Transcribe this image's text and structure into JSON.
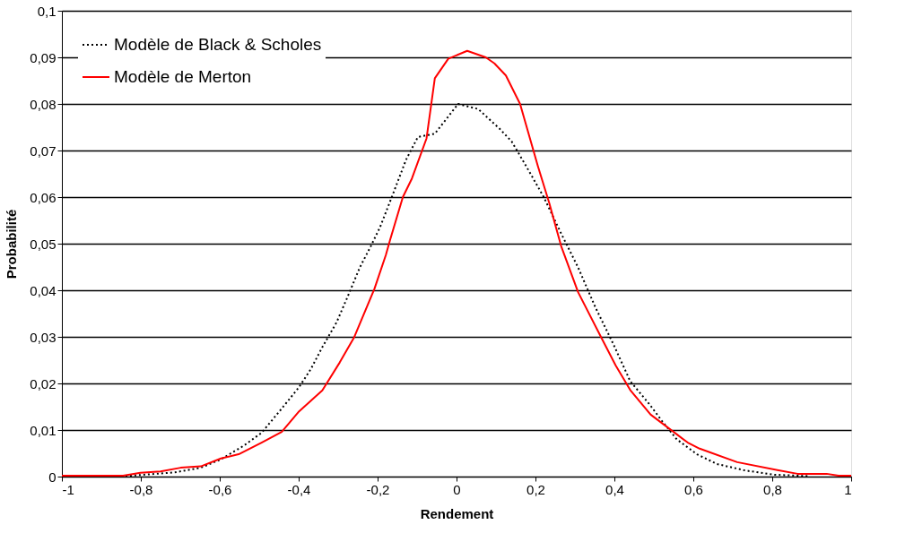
{
  "chart_data": {
    "type": "line",
    "xlabel": "Rendement",
    "ylabel": "Probabilité",
    "xlim": [
      -1,
      1
    ],
    "xticks": [
      {
        "value": -1,
        "label": "-1"
      },
      {
        "value": -0.8,
        "label": "-0,8"
      },
      {
        "value": -0.6,
        "label": "-0,6"
      },
      {
        "value": -0.4,
        "label": "-0,4"
      },
      {
        "value": -0.2,
        "label": "-0,2"
      },
      {
        "value": 0,
        "label": "0"
      },
      {
        "value": 0.2,
        "label": "0,2"
      },
      {
        "value": 0.4,
        "label": "0,4"
      },
      {
        "value": 0.6,
        "label": "0,6"
      },
      {
        "value": 0.8,
        "label": "0,8"
      },
      {
        "value": 1,
        "label": "1"
      }
    ],
    "ylim": [
      0,
      0.1
    ],
    "yticks": [
      0,
      {
        "value": 0.01,
        "label": "0,01"
      },
      {
        "value": 0.02,
        "label": "0,02"
      },
      {
        "value": 0.03,
        "label": "0,03"
      },
      {
        "value": 0.04,
        "label": "0,04"
      },
      {
        "value": 0.05,
        "label": "0,05"
      },
      {
        "value": 0.06,
        "label": "0,06"
      },
      {
        "value": 0.07,
        "label": "0,07"
      },
      {
        "value": 0.08,
        "label": "0,08"
      },
      {
        "value": 0.09,
        "label": "0,09"
      },
      {
        "value": 0.1,
        "label": "0,1"
      }
    ],
    "grid": "y",
    "legend": "top left",
    "marker": "none",
    "series": [
      {
        "name": "Modèle de Black & Scholes",
        "color": "#000000",
        "line_style": "dotted",
        "x": [
          -0.85,
          -0.824,
          -0.714,
          -0.648,
          -0.597,
          -0.538,
          -0.494,
          -0.443,
          -0.399,
          -0.369,
          -0.34,
          -0.304,
          -0.274,
          -0.245,
          -0.217,
          -0.194,
          -0.164,
          -0.128,
          -0.098,
          -0.055,
          0.004,
          0.055,
          0.11,
          0.14,
          0.176,
          0.221,
          0.265,
          0.308,
          0.352,
          0.397,
          0.44,
          0.491,
          0.52,
          0.558,
          0.609,
          0.66,
          0.732,
          0.806,
          0.893
        ],
        "values": [
          0,
          0.0002,
          0.0009,
          0.0019,
          0.0037,
          0.0067,
          0.0094,
          0.0146,
          0.0192,
          0.0231,
          0.0278,
          0.0331,
          0.039,
          0.0449,
          0.0495,
          0.0535,
          0.06,
          0.068,
          0.0729,
          0.0736,
          0.08,
          0.0789,
          0.0746,
          0.0719,
          0.0667,
          0.06,
          0.0522,
          0.0449,
          0.0363,
          0.0285,
          0.0205,
          0.0153,
          0.012,
          0.008,
          0.0048,
          0.0027,
          0.0013,
          0.0004,
          0.0001
        ]
      },
      {
        "name": "Modèle de Merton",
        "color": "#ff0000",
        "line_style": "solid",
        "x": [
          -1,
          -0.845,
          -0.801,
          -0.75,
          -0.699,
          -0.648,
          -0.597,
          -0.552,
          -0.494,
          -0.443,
          -0.399,
          -0.34,
          -0.296,
          -0.26,
          -0.208,
          -0.179,
          -0.168,
          -0.136,
          -0.113,
          -0.076,
          -0.055,
          -0.021,
          0.027,
          0.074,
          0.096,
          0.125,
          0.161,
          0.206,
          0.235,
          0.265,
          0.308,
          0.367,
          0.403,
          0.44,
          0.492,
          0.55,
          0.586,
          0.616,
          0.711,
          0.813,
          0.864,
          0.938,
          0.968,
          1
        ],
        "values": [
          0.0002,
          0.0002,
          0.0008,
          0.0011,
          0.0019,
          0.0022,
          0.0039,
          0.0048,
          0.0073,
          0.0096,
          0.014,
          0.0185,
          0.0245,
          0.0298,
          0.0403,
          0.0476,
          0.0509,
          0.06,
          0.064,
          0.0726,
          0.0855,
          0.0897,
          0.0914,
          0.09,
          0.0887,
          0.0861,
          0.08,
          0.0667,
          0.0587,
          0.0495,
          0.0396,
          0.0298,
          0.0239,
          0.0186,
          0.0133,
          0.0096,
          0.0073,
          0.006,
          0.0031,
          0.0014,
          0.0006,
          0.0006,
          0.0002,
          0.0002
        ]
      }
    ]
  }
}
